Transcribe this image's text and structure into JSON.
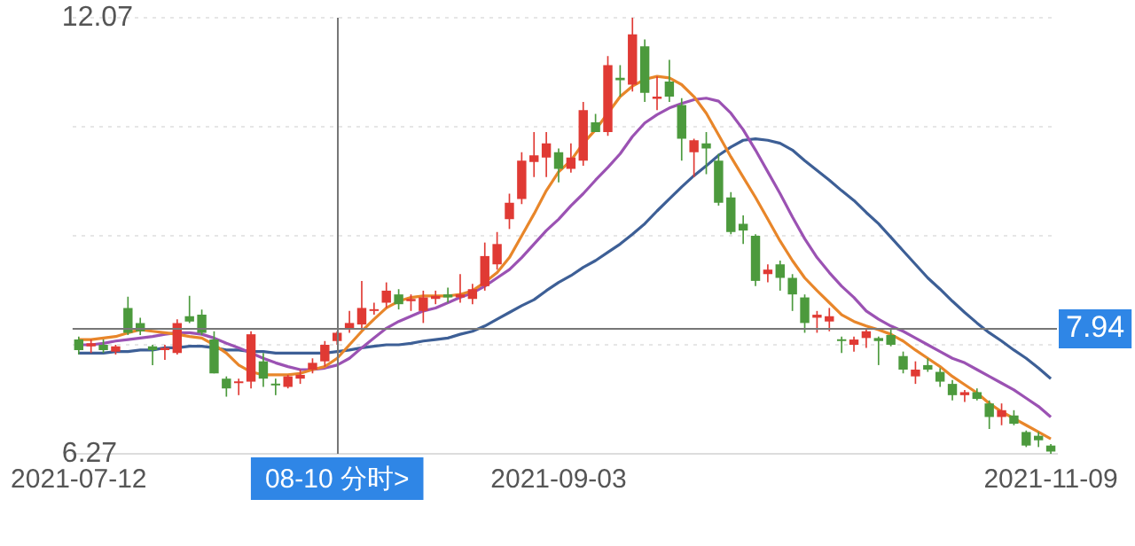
{
  "chart_data": {
    "type": "candlestick",
    "categories": [
      "2021-07-12",
      null,
      null,
      null,
      null,
      null,
      null,
      null,
      null,
      null,
      null,
      null,
      null,
      null,
      null,
      null,
      null,
      null,
      null,
      null,
      null,
      "08-10 分时>",
      null,
      null,
      null,
      null,
      null,
      null,
      null,
      null,
      null,
      null,
      null,
      null,
      null,
      null,
      null,
      null,
      null,
      "2021-09-03",
      null,
      null,
      null,
      null,
      null,
      null,
      null,
      null,
      null,
      null,
      null,
      null,
      null,
      null,
      null,
      null,
      null,
      null,
      null,
      null,
      null,
      null,
      null,
      null,
      null,
      null,
      null,
      null,
      null,
      null,
      null,
      null,
      null,
      null,
      null,
      null,
      null,
      null,
      null,
      "2021-11-09"
    ],
    "ohlc": [
      [
        7.79,
        7.83,
        7.59,
        7.65
      ],
      [
        7.7,
        7.79,
        7.61,
        7.74
      ],
      [
        7.72,
        7.79,
        7.61,
        7.65
      ],
      [
        7.63,
        7.72,
        7.59,
        7.7
      ],
      [
        8.21,
        8.36,
        7.85,
        7.88
      ],
      [
        8.01,
        8.08,
        7.85,
        7.9
      ],
      [
        7.7,
        7.72,
        7.45,
        7.65
      ],
      [
        7.65,
        7.72,
        7.52,
        7.68
      ],
      [
        7.61,
        8.06,
        7.59,
        8.01
      ],
      [
        8.1,
        8.37,
        8.01,
        8.03
      ],
      [
        8.12,
        8.19,
        7.85,
        7.88
      ],
      [
        7.79,
        7.9,
        7.34,
        7.34
      ],
      [
        7.27,
        7.3,
        7.03,
        7.14
      ],
      [
        7.21,
        7.27,
        7.05,
        7.23
      ],
      [
        7.23,
        7.9,
        7.14,
        7.86
      ],
      [
        7.5,
        7.61,
        7.16,
        7.27
      ],
      [
        7.2,
        7.27,
        7.05,
        7.18
      ],
      [
        7.16,
        7.32,
        7.14,
        7.3
      ],
      [
        7.27,
        7.39,
        7.2,
        7.32
      ],
      [
        7.39,
        7.54,
        7.34,
        7.48
      ],
      [
        7.5,
        7.77,
        7.43,
        7.72
      ],
      [
        7.77,
        7.9,
        7.72,
        7.88
      ],
      [
        7.94,
        8.17,
        7.88,
        8.01
      ],
      [
        7.99,
        8.57,
        7.94,
        8.21
      ],
      [
        8.17,
        8.28,
        8.12,
        8.19
      ],
      [
        8.28,
        8.55,
        8.21,
        8.44
      ],
      [
        8.39,
        8.46,
        8.19,
        8.26
      ],
      [
        8.3,
        8.39,
        8.17,
        8.33
      ],
      [
        8.17,
        8.44,
        8.01,
        8.35
      ],
      [
        8.33,
        8.44,
        8.26,
        8.37
      ],
      [
        8.39,
        8.48,
        8.28,
        8.35
      ],
      [
        8.35,
        8.66,
        8.28,
        8.39
      ],
      [
        8.33,
        8.53,
        8.26,
        8.46
      ],
      [
        8.5,
        9.08,
        8.44,
        8.9
      ],
      [
        8.79,
        9.22,
        8.72,
        9.06
      ],
      [
        9.39,
        9.73,
        9.26,
        9.61
      ],
      [
        9.66,
        10.28,
        9.59,
        10.17
      ],
      [
        10.15,
        10.55,
        9.95,
        10.24
      ],
      [
        10.21,
        10.55,
        9.95,
        10.4
      ],
      [
        10.28,
        10.33,
        9.88,
        10.06
      ],
      [
        10.06,
        10.4,
        10.01,
        10.21
      ],
      [
        10.17,
        10.95,
        10.1,
        10.84
      ],
      [
        10.68,
        10.79,
        10.55,
        10.55
      ],
      [
        10.55,
        11.56,
        10.5,
        11.44
      ],
      [
        11.27,
        11.44,
        11.02,
        11.24
      ],
      [
        11.18,
        12.07,
        11.09,
        11.85
      ],
      [
        11.69,
        11.78,
        10.95,
        11.07
      ],
      [
        10.99,
        11.29,
        10.84,
        11.02
      ],
      [
        11.22,
        11.51,
        10.95,
        11.02
      ],
      [
        10.91,
        11.0,
        10.17,
        10.46
      ],
      [
        10.28,
        10.46,
        9.95,
        10.44
      ],
      [
        10.4,
        10.55,
        9.99,
        10.33
      ],
      [
        10.17,
        10.26,
        9.57,
        9.61
      ],
      [
        9.68,
        9.75,
        9.19,
        9.22
      ],
      [
        9.33,
        9.44,
        9.06,
        9.24
      ],
      [
        9.17,
        9.19,
        8.5,
        8.57
      ],
      [
        8.66,
        8.79,
        8.55,
        8.72
      ],
      [
        8.79,
        8.84,
        8.44,
        8.61
      ],
      [
        8.61,
        8.66,
        8.17,
        8.39
      ],
      [
        8.35,
        8.39,
        7.88,
        8.01
      ],
      [
        8.08,
        8.17,
        7.88,
        8.12
      ],
      [
        8.03,
        8.21,
        7.9,
        8.1
      ],
      [
        7.79,
        7.83,
        7.61,
        7.77
      ],
      [
        7.72,
        7.83,
        7.63,
        7.79
      ],
      [
        7.81,
        7.94,
        7.68,
        7.9
      ],
      [
        7.81,
        7.83,
        7.45,
        7.77
      ],
      [
        7.85,
        7.94,
        7.7,
        7.72
      ],
      [
        7.57,
        7.63,
        7.34,
        7.39
      ],
      [
        7.3,
        7.5,
        7.2,
        7.39
      ],
      [
        7.45,
        7.54,
        7.36,
        7.39
      ],
      [
        7.36,
        7.41,
        7.16,
        7.23
      ],
      [
        7.2,
        7.25,
        6.98,
        7.05
      ],
      [
        7.05,
        7.12,
        6.96,
        7.09
      ],
      [
        7.09,
        7.14,
        6.98,
        7.0
      ],
      [
        6.94,
        6.98,
        6.6,
        6.76
      ],
      [
        6.76,
        6.94,
        6.65,
        6.85
      ],
      [
        6.78,
        6.85,
        6.65,
        6.67
      ],
      [
        6.56,
        6.58,
        6.36,
        6.38
      ],
      [
        6.51,
        6.56,
        6.36,
        6.45
      ],
      [
        6.38,
        6.4,
        6.27,
        6.3
      ]
    ],
    "colors": [
      "#4c9a3d",
      "#e03a34",
      "#4c9a3d",
      "#e03a34",
      "#4c9a3d",
      "#4c9a3d",
      "#4c9a3d",
      "#e03a34",
      "#e03a34",
      "#4c9a3d",
      "#4c9a3d",
      "#4c9a3d",
      "#4c9a3d",
      "#e03a34",
      "#e03a34",
      "#4c9a3d",
      "#4c9a3d",
      "#e03a34",
      "#e03a34",
      "#e03a34",
      "#e03a34",
      "#e03a34",
      "#e03a34",
      "#e03a34",
      "#e03a34",
      "#e03a34",
      "#4c9a3d",
      "#e03a34",
      "#e03a34",
      "#e03a34",
      "#4c9a3d",
      "#e03a34",
      "#e03a34",
      "#e03a34",
      "#e03a34",
      "#e03a34",
      "#e03a34",
      "#e03a34",
      "#e03a34",
      "#4c9a3d",
      "#e03a34",
      "#e03a34",
      "#4c9a3d",
      "#e03a34",
      "#4c9a3d",
      "#e03a34",
      "#4c9a3d",
      "#e03a34",
      "#4c9a3d",
      "#4c9a3d",
      "#e03a34",
      "#4c9a3d",
      "#4c9a3d",
      "#4c9a3d",
      "#4c9a3d",
      "#4c9a3d",
      "#e03a34",
      "#4c9a3d",
      "#4c9a3d",
      "#4c9a3d",
      "#e03a34",
      "#e03a34",
      "#4c9a3d",
      "#e03a34",
      "#e03a34",
      "#4c9a3d",
      "#4c9a3d",
      "#4c9a3d",
      "#e03a34",
      "#4c9a3d",
      "#4c9a3d",
      "#4c9a3d",
      "#e03a34",
      "#4c9a3d",
      "#4c9a3d",
      "#e03a34",
      "#4c9a3d",
      "#4c9a3d",
      "#4c9a3d",
      "#4c9a3d"
    ],
    "series": [
      {
        "type": "line",
        "color": "#e8862a",
        "values": [
          7.79,
          7.79,
          7.81,
          7.83,
          7.88,
          7.92,
          7.9,
          7.88,
          7.86,
          7.83,
          7.81,
          7.72,
          7.61,
          7.45,
          7.36,
          7.32,
          7.32,
          7.32,
          7.34,
          7.39,
          7.43,
          7.54,
          7.72,
          7.9,
          8.06,
          8.21,
          8.3,
          8.35,
          8.37,
          8.37,
          8.37,
          8.39,
          8.44,
          8.55,
          8.68,
          8.88,
          9.17,
          9.46,
          9.77,
          10.02,
          10.17,
          10.4,
          10.58,
          10.8,
          11.02,
          11.16,
          11.25,
          11.29,
          11.27,
          11.18,
          11.02,
          10.8,
          10.51,
          10.22,
          9.95,
          9.68,
          9.39,
          9.1,
          8.84,
          8.61,
          8.44,
          8.28,
          8.12,
          8.03,
          7.97,
          7.92,
          7.86,
          7.77,
          7.65,
          7.54,
          7.43,
          7.3,
          7.19,
          7.08,
          6.94,
          6.83,
          6.74,
          6.65,
          6.56,
          6.47
        ]
      },
      {
        "type": "line",
        "color": "#9b52b3",
        "values": [
          7.72,
          7.72,
          7.74,
          7.77,
          7.79,
          7.81,
          7.83,
          7.86,
          7.88,
          7.88,
          7.86,
          7.81,
          7.74,
          7.68,
          7.61,
          7.54,
          7.48,
          7.43,
          7.39,
          7.39,
          7.41,
          7.45,
          7.54,
          7.68,
          7.81,
          7.94,
          8.03,
          8.1,
          8.17,
          8.21,
          8.28,
          8.35,
          8.41,
          8.5,
          8.61,
          8.72,
          8.88,
          9.06,
          9.24,
          9.39,
          9.57,
          9.73,
          9.91,
          10.08,
          10.26,
          10.49,
          10.67,
          10.78,
          10.87,
          10.93,
          10.98,
          11.0,
          10.96,
          10.8,
          10.58,
          10.31,
          10.02,
          9.73,
          9.42,
          9.13,
          8.88,
          8.68,
          8.5,
          8.35,
          8.17,
          8.06,
          7.97,
          7.9,
          7.81,
          7.72,
          7.63,
          7.54,
          7.48,
          7.39,
          7.3,
          7.21,
          7.12,
          7.01,
          6.9,
          6.76
        ]
      },
      {
        "type": "line",
        "color": "#3d5f96",
        "values": [
          7.61,
          7.61,
          7.61,
          7.63,
          7.63,
          7.65,
          7.65,
          7.68,
          7.68,
          7.7,
          7.7,
          7.68,
          7.65,
          7.65,
          7.63,
          7.63,
          7.61,
          7.61,
          7.61,
          7.61,
          7.61,
          7.63,
          7.65,
          7.68,
          7.7,
          7.72,
          7.72,
          7.74,
          7.77,
          7.79,
          7.81,
          7.86,
          7.9,
          7.97,
          8.06,
          8.15,
          8.24,
          8.32,
          8.44,
          8.55,
          8.64,
          8.75,
          8.84,
          8.95,
          9.06,
          9.19,
          9.33,
          9.5,
          9.66,
          9.82,
          9.97,
          10.1,
          10.24,
          10.35,
          10.44,
          10.46,
          10.44,
          10.4,
          10.31,
          10.17,
          10.04,
          9.91,
          9.77,
          9.64,
          9.48,
          9.33,
          9.15,
          8.97,
          8.79,
          8.61,
          8.46,
          8.3,
          8.15,
          8.01,
          7.88,
          7.77,
          7.65,
          7.54,
          7.41,
          7.27
        ]
      }
    ],
    "ylim": [
      6.27,
      12.07
    ],
    "yticks": [
      6.27,
      {
        "value": 7.72,
        "label": null
      },
      {
        "value": 9.17,
        "label": null
      },
      {
        "value": 10.62,
        "label": null
      },
      12.07
    ],
    "grid": "y",
    "ref_lines": [
      {
        "axis": "x",
        "value": "08-10 分时>"
      },
      {
        "axis": "y",
        "value": 7.94,
        "label": "7.94"
      }
    ]
  }
}
